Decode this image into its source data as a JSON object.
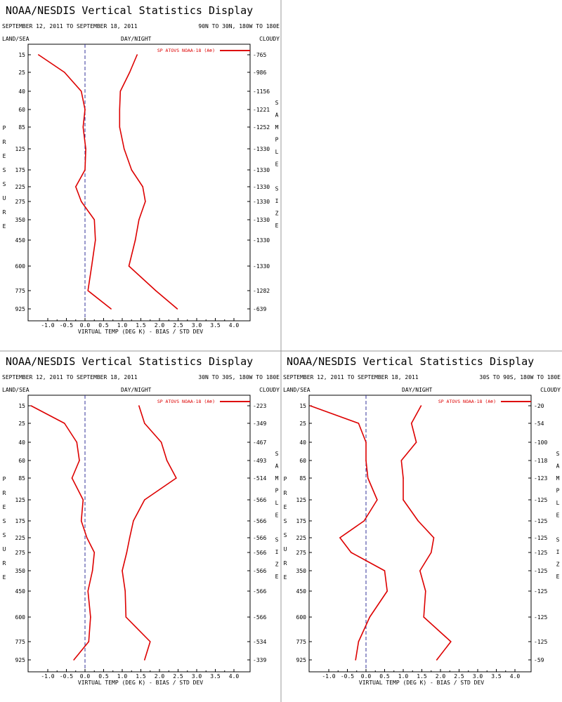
{
  "colors": {
    "series": "#dd0000",
    "frame": "#000000",
    "divider": "#999999",
    "zero_line": "#333399"
  },
  "panels": [
    {
      "title": "NOAA/NESDIS Vertical Statistics Display",
      "date_range": "SEPTEMBER 12, 2011 TO SEPTEMBER 18, 2011",
      "region": "90N TO 30N, 180W TO 180E",
      "land_sea": "LAND/SEA",
      "day_night": "DAY/NIGHT",
      "cloudy": "CLOUDY",
      "legend": "SP ATOVS NOAA-18 (A⊕)",
      "y_title": "PRESSURE",
      "y2_title": "SAMPLE SIZE",
      "x_title": "VIRTUAL TEMP (DEG K) - BIAS / STD DEV",
      "xticks": [
        "-1.0",
        "-0.5",
        "0.0",
        "0.5",
        "1.0",
        "1.5",
        "2.0",
        "2.5",
        "3.0",
        "3.5",
        "4.0"
      ],
      "pressure_levels": [
        "15",
        "25",
        "40",
        "60",
        "85",
        "125",
        "175",
        "225",
        "275",
        "350",
        "450",
        "600",
        "775",
        "925"
      ],
      "sample_sizes": [
        "765",
        "986",
        "1156",
        "1221",
        "1252",
        "1330",
        "1330",
        "1330",
        "1330",
        "1330",
        "1330",
        "1330",
        "1282",
        "639"
      ]
    },
    {
      "title": "NOAA/NESDIS Vertical Statistics Display",
      "date_range": "SEPTEMBER 12, 2011 TO SEPTEMBER 18, 2011",
      "region": "30N TO 30S, 180W TO 180E",
      "land_sea": "LAND/SEA",
      "day_night": "DAY/NIGHT",
      "cloudy": "CLOUDY",
      "legend": "SP ATOVS NOAA-18 (A⊕)",
      "y_title": "PRESSURE",
      "y2_title": "SAMPLE SIZE",
      "x_title": "VIRTUAL TEMP (DEG K) - BIAS / STD DEV",
      "xticks": [
        "-1.0",
        "-0.5",
        "0.0",
        "0.5",
        "1.0",
        "1.5",
        "2.0",
        "2.5",
        "3.0",
        "3.5",
        "4.0"
      ],
      "pressure_levels": [
        "15",
        "25",
        "40",
        "60",
        "85",
        "125",
        "175",
        "225",
        "275",
        "350",
        "450",
        "600",
        "775",
        "925"
      ],
      "sample_sizes": [
        "223",
        "349",
        "467",
        "493",
        "514",
        "566",
        "566",
        "566",
        "566",
        "566",
        "566",
        "566",
        "534",
        "339"
      ]
    },
    {
      "title": "NOAA/NESDIS Vertical Statistics Display",
      "date_range": "SEPTEMBER 12, 2011 TO SEPTEMBER 18, 2011",
      "region": "30S TO 90S, 180W TO 180E",
      "land_sea": "LAND/SEA",
      "day_night": "DAY/NIGHT",
      "cloudy": "CLOUDY",
      "legend": "SP ATOVS NOAA-18 (A⊕)",
      "y_title": "PRESSURE",
      "y2_title": "SAMPLE SIZE",
      "x_title": "VIRTUAL TEMP (DEG K) - BIAS / STD DEV",
      "xticks": [
        "-1.0",
        "-0.5",
        "0.0",
        "0.5",
        "1.0",
        "1.5",
        "2.0",
        "2.5",
        "3.0",
        "3.5",
        "4.0"
      ],
      "pressure_levels": [
        "15",
        "25",
        "40",
        "60",
        "85",
        "125",
        "175",
        "225",
        "275",
        "350",
        "450",
        "600",
        "775",
        "925"
      ],
      "sample_sizes": [
        "20",
        "54",
        "100",
        "118",
        "123",
        "125",
        "125",
        "125",
        "125",
        "125",
        "125",
        "125",
        "125",
        "59"
      ]
    }
  ],
  "chart_data": [
    {
      "type": "line",
      "title": "NOAA/NESDIS Vertical Statistics Display",
      "xlabel": "VIRTUAL TEMP (DEG K) - BIAS / STD DEV",
      "ylabel": "PRESSURE",
      "xlim": [
        -1.5,
        4.3
      ],
      "y": [
        15,
        25,
        40,
        60,
        85,
        125,
        175,
        225,
        275,
        350,
        450,
        600,
        775,
        925
      ],
      "series": [
        {
          "name": "SP ATOVS NOAA-18 (A⊕)",
          "values": [
            -1.25,
            -0.55,
            -0.1,
            0.0,
            -0.05,
            0.02,
            0.0,
            -0.25,
            -0.1,
            0.25,
            0.28,
            0.18,
            0.08,
            0.7
          ]
        },
        {
          "name": "SP ATOVS NOAA-18 (A⊕)",
          "values": [
            1.4,
            1.2,
            0.95,
            0.93,
            0.93,
            1.05,
            1.25,
            1.55,
            1.62,
            1.45,
            1.35,
            1.18,
            1.9,
            2.48
          ]
        }
      ]
    },
    {
      "type": "line",
      "title": "NOAA/NESDIS Vertical Statistics Display",
      "xlabel": "VIRTUAL TEMP (DEG K) - BIAS / STD DEV",
      "ylabel": "PRESSURE",
      "xlim": [
        -1.5,
        4.3
      ],
      "y": [
        15,
        25,
        40,
        60,
        85,
        125,
        175,
        225,
        275,
        350,
        450,
        600,
        775,
        925
      ],
      "series": [
        {
          "name": "SP ATOVS NOAA-18 (A⊕)",
          "values": [
            -1.45,
            -0.55,
            -0.22,
            -0.15,
            -0.35,
            -0.05,
            -0.1,
            0.05,
            0.25,
            0.2,
            0.08,
            0.15,
            0.1,
            -0.3
          ]
        },
        {
          "name": "SP ATOVS NOAA-18 (A⊕)",
          "values": [
            1.45,
            1.6,
            2.05,
            2.2,
            2.45,
            1.6,
            1.3,
            1.2,
            1.12,
            1.0,
            1.08,
            1.1,
            1.75,
            1.6
          ]
        }
      ]
    },
    {
      "type": "line",
      "title": "NOAA/NESDIS Vertical Statistics Display",
      "xlabel": "VIRTUAL TEMP (DEG K) - BIAS / STD DEV",
      "ylabel": "PRESSURE",
      "xlim": [
        -1.5,
        4.3
      ],
      "y": [
        15,
        25,
        40,
        60,
        85,
        125,
        175,
        225,
        275,
        350,
        450,
        600,
        775,
        925
      ],
      "series": [
        {
          "name": "SP ATOVS NOAA-18 (A⊕)",
          "values": [
            -1.5,
            -0.2,
            0.0,
            0.0,
            0.05,
            0.3,
            -0.05,
            -0.7,
            -0.4,
            0.5,
            0.57,
            0.1,
            -0.2,
            -0.28
          ]
        },
        {
          "name": "SP ATOVS NOAA-18 (A⊕)",
          "values": [
            1.48,
            1.22,
            1.35,
            0.95,
            1.0,
            1.0,
            1.4,
            1.82,
            1.75,
            1.45,
            1.6,
            1.55,
            2.28,
            1.9
          ]
        }
      ]
    }
  ]
}
